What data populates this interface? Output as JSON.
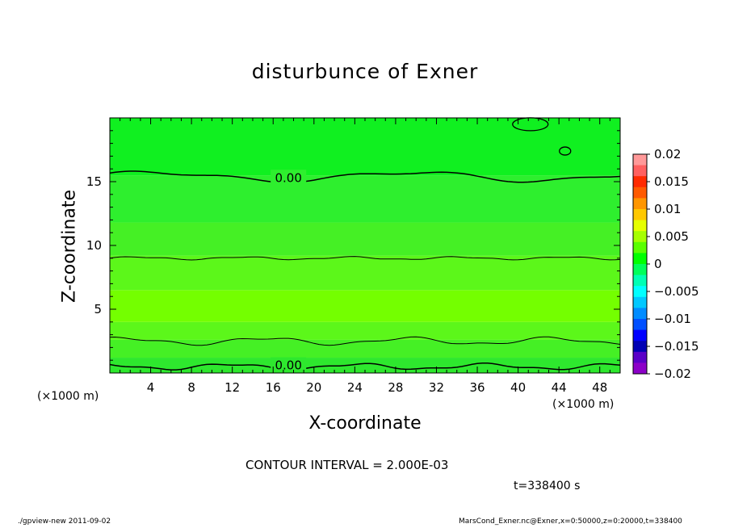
{
  "chart_data": {
    "type": "heatmap",
    "title": "disturbunce of Exner",
    "xlabel": "X-coordinate",
    "ylabel": "Z-coordinate",
    "x_unit_label": "(×1000 m)",
    "xlim": [
      0,
      50
    ],
    "ylim": [
      0,
      20
    ],
    "x_ticks": [
      4,
      8,
      12,
      16,
      20,
      24,
      28,
      32,
      36,
      40,
      44,
      48
    ],
    "y_ticks": [
      5,
      10,
      15
    ],
    "contour_interval_text": "CONTOUR INTERVAL = 2.000E-03",
    "contour_labels": [
      {
        "text": "0.00",
        "x": 17.5,
        "z": 15.3
      },
      {
        "text": "0.00",
        "x": 17.5,
        "z": 0.6
      }
    ],
    "colorbar": {
      "levels": [
        0.02,
        0.015,
        0.01,
        0.005,
        0,
        -0.005,
        -0.01,
        -0.015,
        -0.02
      ],
      "tick_labels": [
        "0.02",
        "0.015",
        "0.01",
        "0.005",
        "0",
        "−0.005",
        "−0.01",
        "−0.015",
        "−0.02"
      ],
      "colors_top_to_bottom": [
        "#ff9999",
        "#ff6060",
        "#ff2a00",
        "#ff5a00",
        "#ff9600",
        "#ffc800",
        "#e6ff00",
        "#a6ff00",
        "#5aff00",
        "#00ff00",
        "#00ff5a",
        "#00ffb4",
        "#00ffff",
        "#00c8ff",
        "#008cff",
        "#0050ff",
        "#0000ff",
        "#0000b4",
        "#5a00c8",
        "#8c00c8"
      ]
    },
    "field_bands": [
      {
        "z0": 0,
        "z1": 1.2,
        "color": "#2ee82e"
      },
      {
        "z0": 1.2,
        "z1": 2.6,
        "color": "#45f025"
      },
      {
        "z0": 2.6,
        "z1": 4.0,
        "color": "#5cf71a"
      },
      {
        "z0": 4.0,
        "z1": 6.5,
        "color": "#74ff00"
      },
      {
        "z0": 6.5,
        "z1": 9.2,
        "color": "#5cf71a"
      },
      {
        "z0": 9.2,
        "z1": 11.8,
        "color": "#45f025"
      },
      {
        "z0": 11.8,
        "z1": 15.5,
        "color": "#2eef2e"
      },
      {
        "z0": 15.5,
        "z1": 20,
        "color": "#10f020"
      }
    ]
  },
  "time_text": "t=338400 s",
  "footer": {
    "left": "./gpview-new  2011-09-02",
    "right": "MarsCond_Exner.nc@Exner,x=0:50000,z=0:20000,t=338400"
  }
}
